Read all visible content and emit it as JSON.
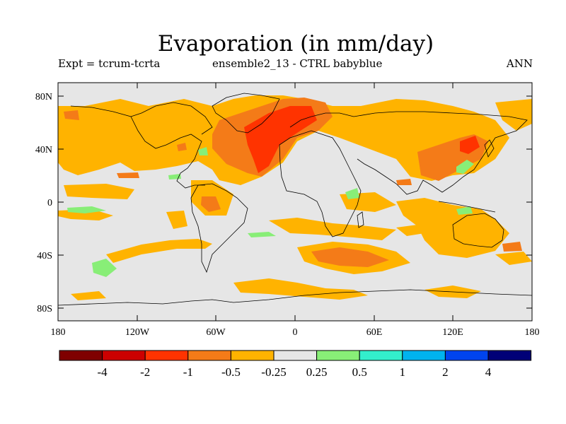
{
  "title": "Evaporation (in mm/day)",
  "subtitle_left": "Expt = tcrum-tcrta",
  "subtitle_center": "ensemble2_13 - CTRL babyblue",
  "subtitle_right": "ANN",
  "lat_ticks": [
    "80N",
    "40N",
    "0",
    "40S",
    "80S"
  ],
  "lon_ticks": [
    "180",
    "120W",
    "60W",
    "0",
    "60E",
    "120E",
    "180"
  ],
  "colorbar": {
    "colors": [
      "#7f0000",
      "#cc0000",
      "#ff3300",
      "#f47b18",
      "#ffb300",
      "#e6e6e6",
      "#88ee77",
      "#33eecc",
      "#00b3ee",
      "#0044ee",
      "#000077"
    ],
    "labels": [
      "-4",
      "-2",
      "-1",
      "-0.5",
      "-0.25",
      "0.25",
      "0.5",
      "1",
      "2",
      "4"
    ]
  },
  "map_colors": {
    "background": "#e6e6e6",
    "light_orange": "#ffb300",
    "orange": "#f47b18",
    "red_orange": "#ff3300",
    "green": "#88ee77",
    "coastline": "#000000"
  }
}
